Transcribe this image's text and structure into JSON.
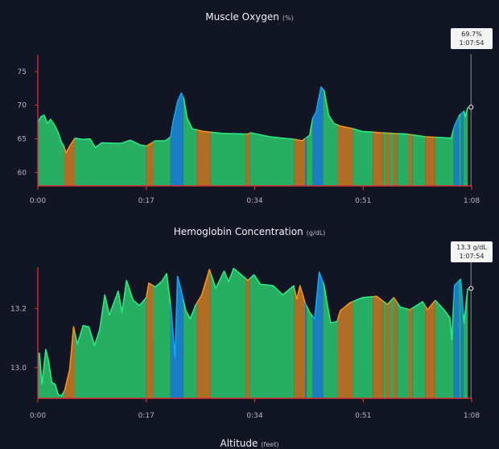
{
  "colors": {
    "background": "#111524",
    "axis": "#d9303a",
    "zone_green_fill": "#27ae63",
    "zone_green_line": "#2bea84",
    "zone_orange_fill": "#b06e24",
    "zone_orange_line": "#f2941f",
    "zone_blue_fill": "#1a7cc2",
    "zone_blue_line": "#0aaaf2",
    "cursor": "#8a8d96"
  },
  "chart_data": [
    {
      "type": "area",
      "title": "Muscle Oxygen",
      "unit": "(%)",
      "xlabel": "",
      "ylabel": "",
      "xlim": [
        0,
        68
      ],
      "ylim": [
        58,
        77.5
      ],
      "x_ticks": [
        {
          "v": 0,
          "label": "0:00"
        },
        {
          "v": 17,
          "label": "0:17"
        },
        {
          "v": 34,
          "label": "0:34"
        },
        {
          "v": 51,
          "label": "0:51"
        },
        {
          "v": 68,
          "label": "1:08"
        }
      ],
      "y_ticks": [
        {
          "v": 60,
          "label": "60"
        },
        {
          "v": 65,
          "label": "65"
        },
        {
          "v": 70,
          "label": "70"
        },
        {
          "v": 75,
          "label": "75"
        }
      ],
      "grid": false,
      "tooltip": {
        "value": "69.7%",
        "time": "1:07:54",
        "x": 67.9,
        "y": 69.7
      },
      "points": [
        [
          0,
          67.5
        ],
        [
          0.5,
          68.3
        ],
        [
          1,
          68.5
        ],
        [
          1.5,
          67.3
        ],
        [
          2,
          67.9
        ],
        [
          2.7,
          66.9
        ],
        [
          3.2,
          65.9
        ],
        [
          3.7,
          64.5
        ],
        [
          4.1,
          63.9
        ],
        [
          4.4,
          62.9
        ],
        [
          5,
          63.9
        ],
        [
          5.8,
          65.1
        ],
        [
          7,
          64.9
        ],
        [
          8.2,
          65
        ],
        [
          9,
          63.7
        ],
        [
          10,
          64.4
        ],
        [
          13,
          64.3
        ],
        [
          14.5,
          64.8
        ],
        [
          16,
          64.1
        ],
        [
          17,
          63.9
        ],
        [
          18.4,
          64.7
        ],
        [
          20,
          64.7
        ],
        [
          20.8,
          65.3
        ],
        [
          21.2,
          67.5
        ],
        [
          21.9,
          70.5
        ],
        [
          22.5,
          71.8
        ],
        [
          22.9,
          70.9
        ],
        [
          23.4,
          68.1
        ],
        [
          24.2,
          66.5
        ],
        [
          25.9,
          66.1
        ],
        [
          28.9,
          65.8
        ],
        [
          32.9,
          65.7
        ],
        [
          33.4,
          65.9
        ],
        [
          36.4,
          65.3
        ],
        [
          40.4,
          64.9
        ],
        [
          41.4,
          64.7
        ],
        [
          42.6,
          65.5
        ],
        [
          43.1,
          68.1
        ],
        [
          43.6,
          68.9
        ],
        [
          44.4,
          72.7
        ],
        [
          44.9,
          72.1
        ],
        [
          45.6,
          68.5
        ],
        [
          46.4,
          67.3
        ],
        [
          47.4,
          66.9
        ],
        [
          49.4,
          66.5
        ],
        [
          50.8,
          66.1
        ],
        [
          53.8,
          65.9
        ],
        [
          57.8,
          65.7
        ],
        [
          60.8,
          65.3
        ],
        [
          64.8,
          65.1
        ],
        [
          65.3,
          66.9
        ],
        [
          66.1,
          68.5
        ],
        [
          66.8,
          69.1
        ],
        [
          67,
          68.3
        ],
        [
          67.4,
          69.7
        ]
      ]
    },
    {
      "type": "area",
      "title": "Hemoglobin Concentration",
      "unit": "(g/dL)",
      "xlabel": "",
      "ylabel": "",
      "xlim": [
        0,
        68
      ],
      "ylim": [
        12.896,
        13.34
      ],
      "x_ticks": [
        {
          "v": 0,
          "label": "0:00"
        },
        {
          "v": 17,
          "label": "0:17"
        },
        {
          "v": 34,
          "label": "0:34"
        },
        {
          "v": 51,
          "label": "0:51"
        },
        {
          "v": 68,
          "label": "1:08"
        }
      ],
      "y_ticks": [
        {
          "v": 13.0,
          "label": "13.0"
        },
        {
          "v": 13.2,
          "label": "13.2"
        }
      ],
      "grid": false,
      "tooltip": {
        "value": "13.3 g/dL",
        "time": "1:07:54",
        "x": 67.9,
        "y": 13.268
      },
      "points": [
        [
          0,
          13.048
        ],
        [
          0.25,
          13.048
        ],
        [
          0.65,
          12.944
        ],
        [
          1.25,
          13.061
        ],
        [
          1.7,
          13.021
        ],
        [
          2.2,
          12.949
        ],
        [
          2.7,
          12.944
        ],
        [
          3.2,
          12.908
        ],
        [
          3.7,
          12.905
        ],
        [
          4.2,
          12.922
        ],
        [
          5,
          12.994
        ],
        [
          5.6,
          13.138
        ],
        [
          6.2,
          13.079
        ],
        [
          7.1,
          13.142
        ],
        [
          8,
          13.138
        ],
        [
          8.9,
          13.075
        ],
        [
          9.7,
          13.129
        ],
        [
          10.5,
          13.246
        ],
        [
          11.2,
          13.178
        ],
        [
          12.6,
          13.259
        ],
        [
          13.2,
          13.187
        ],
        [
          13.9,
          13.295
        ],
        [
          14.95,
          13.228
        ],
        [
          15.95,
          13.21
        ],
        [
          17,
          13.237
        ],
        [
          17.4,
          13.286
        ],
        [
          18.4,
          13.273
        ],
        [
          19.4,
          13.291
        ],
        [
          20.2,
          13.318
        ],
        [
          20.9,
          13.196
        ],
        [
          21.5,
          13.034
        ],
        [
          21.9,
          13.309
        ],
        [
          22.4,
          13.268
        ],
        [
          23.2,
          13.192
        ],
        [
          23.9,
          13.165
        ],
        [
          24.7,
          13.21
        ],
        [
          25.7,
          13.246
        ],
        [
          26.9,
          13.332
        ],
        [
          27.9,
          13.268
        ],
        [
          29.2,
          13.327
        ],
        [
          29.9,
          13.291
        ],
        [
          30.7,
          13.336
        ],
        [
          31.9,
          13.314
        ],
        [
          32.9,
          13.295
        ],
        [
          33.9,
          13.314
        ],
        [
          34.9,
          13.282
        ],
        [
          36.9,
          13.277
        ],
        [
          38.4,
          13.246
        ],
        [
          40.1,
          13.277
        ],
        [
          40.6,
          13.232
        ],
        [
          41.1,
          13.277
        ],
        [
          41.9,
          13.219
        ],
        [
          42.6,
          13.187
        ],
        [
          43.4,
          13.165
        ],
        [
          44.1,
          13.323
        ],
        [
          44.9,
          13.277
        ],
        [
          45.4,
          13.21
        ],
        [
          45.9,
          13.151
        ],
        [
          46.9,
          13.156
        ],
        [
          47.4,
          13.192
        ],
        [
          48.9,
          13.219
        ],
        [
          50.9,
          13.237
        ],
        [
          53.1,
          13.241
        ],
        [
          54.8,
          13.214
        ],
        [
          55.8,
          13.237
        ],
        [
          56.8,
          13.205
        ],
        [
          58.3,
          13.196
        ],
        [
          60.3,
          13.223
        ],
        [
          61.1,
          13.196
        ],
        [
          62.3,
          13.228
        ],
        [
          63.8,
          13.192
        ],
        [
          64.6,
          13.169
        ],
        [
          64.9,
          13.093
        ],
        [
          65.3,
          13.277
        ],
        [
          66.3,
          13.3
        ],
        [
          66.8,
          13.151
        ],
        [
          67.4,
          13.268
        ]
      ]
    },
    {
      "type": "area",
      "title": "Altitude",
      "unit": "(feet)"
    }
  ],
  "zones": [
    {
      "from": 4.1,
      "to": 5.8,
      "zone": "orange"
    },
    {
      "from": 17.0,
      "to": 18.1,
      "zone": "orange"
    },
    {
      "from": 20.8,
      "to": 22.8,
      "zone": "blue"
    },
    {
      "from": 24.9,
      "to": 27.1,
      "zone": "orange"
    },
    {
      "from": 32.6,
      "to": 33.2,
      "zone": "orange"
    },
    {
      "from": 40.2,
      "to": 41.9,
      "zone": "orange"
    },
    {
      "from": 41.9,
      "to": 42.1,
      "zone": "blue"
    },
    {
      "from": 43.1,
      "to": 44.7,
      "zone": "blue"
    },
    {
      "from": 47.0,
      "to": 49.4,
      "zone": "orange"
    },
    {
      "from": 52.5,
      "to": 54.1,
      "zone": "orange"
    },
    {
      "from": 54.5,
      "to": 55.2,
      "zone": "orange"
    },
    {
      "from": 55.7,
      "to": 56.3,
      "zone": "orange"
    },
    {
      "from": 58.1,
      "to": 58.7,
      "zone": "orange"
    },
    {
      "from": 60.7,
      "to": 62.3,
      "zone": "orange"
    },
    {
      "from": 65.2,
      "to": 66.0,
      "zone": "blue"
    },
    {
      "from": 66.3,
      "to": 66.7,
      "zone": "blue"
    }
  ]
}
